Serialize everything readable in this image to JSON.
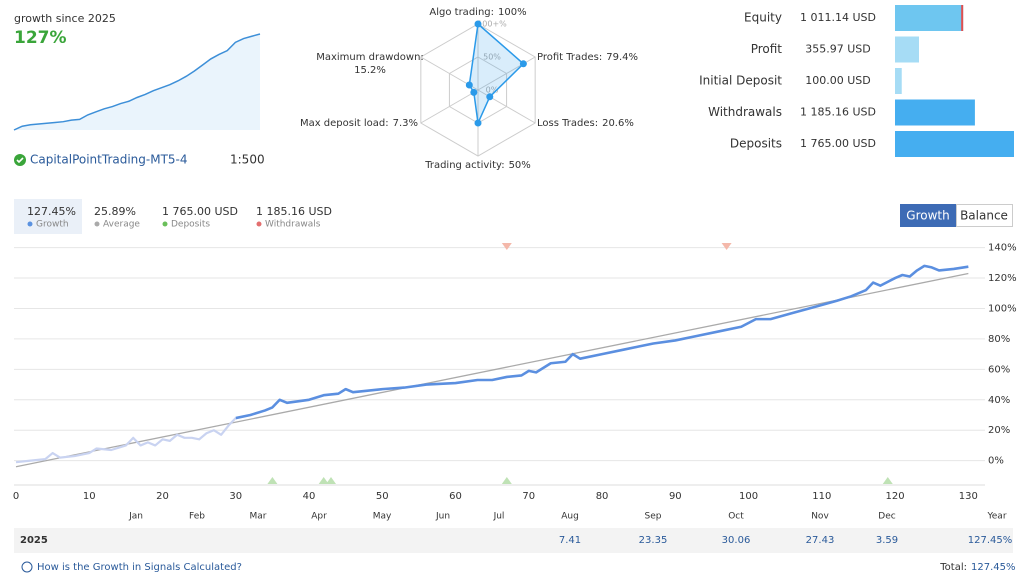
{
  "summary": {
    "label": "growth since 2025",
    "value": "127%",
    "sparkline": [
      0,
      5,
      7,
      8,
      9,
      10,
      11,
      13,
      14,
      20,
      24,
      28,
      31,
      35,
      38,
      43,
      47,
      52,
      56,
      60,
      65,
      71,
      78,
      86,
      94,
      100,
      105,
      116,
      121,
      124,
      127
    ],
    "color": "#3d8fd8",
    "account": "CapitalPointTrading-MT5-4",
    "leverage": "1:500"
  },
  "radar": {
    "color": "#2b9ae9",
    "axes": [
      {
        "name": "Algo trading:",
        "value": 100,
        "value_label": "100%"
      },
      {
        "name": "Profit Trades:",
        "value": 79.4,
        "value_label": "79.4%"
      },
      {
        "name": "Loss Trades:",
        "value": 20.6,
        "value_label": "20.6%"
      },
      {
        "name": "Trading activity:",
        "value": 50,
        "value_label": "50%"
      },
      {
        "name": "Max deposit load:",
        "value": 7.3,
        "value_label": "7.3%"
      },
      {
        "name": "Maximum drawdown:",
        "value": 15.2,
        "value_label": "15.2%"
      }
    ],
    "rticks": [
      {
        "value": 100,
        "label": "100+%"
      },
      {
        "value": 50,
        "label": "50%"
      },
      {
        "value": 0,
        "label": "0%"
      }
    ]
  },
  "stats": [
    {
      "label": "Equity",
      "value": 1011.14,
      "value_label": "1 011.14 USD",
      "color": "#6ec6f0"
    },
    {
      "label": "Profit",
      "value": 355.97,
      "value_label": "355.97 USD",
      "color": "#a6dcf5"
    },
    {
      "label": "Initial Deposit",
      "value": 100.0,
      "value_label": "100.00 USD",
      "color": "#a6dcf5"
    },
    {
      "label": "Withdrawals",
      "value": 1185.16,
      "value_label": "1 185.16 USD",
      "color": "#45aef0"
    },
    {
      "label": "Deposits",
      "value": 1765.0,
      "value_label": "1 765.00 USD",
      "color": "#45aef0"
    }
  ],
  "legend": [
    {
      "value": "127.45%",
      "name": "Growth",
      "color": "#5b92e0"
    },
    {
      "value": "25.89%",
      "name": "Average",
      "color": "#aaaaaa"
    },
    {
      "value": "1 765.00 USD",
      "name": "Deposits",
      "color": "#6abf5a"
    },
    {
      "value": "1 185.16 USD",
      "name": "Withdrawals",
      "color": "#e36f6f"
    }
  ],
  "buttons": [
    "Growth",
    "Balance"
  ],
  "chart": {
    "type": "line",
    "color": "#5b8fe0",
    "early_color": "#c9d3f1",
    "highlight_from": 30,
    "x": [
      0,
      2,
      4,
      5,
      6,
      8,
      10,
      11,
      13,
      15,
      16,
      17,
      18,
      19,
      20,
      21,
      22,
      23,
      24,
      25,
      26,
      27,
      28,
      29,
      30,
      32,
      34,
      35,
      36,
      37,
      40,
      42,
      44,
      45,
      46,
      48,
      50,
      53,
      56,
      60,
      63,
      65,
      67,
      69,
      70,
      71,
      73,
      75,
      76,
      77,
      80,
      83,
      85,
      87,
      90,
      93,
      96,
      99,
      101,
      103,
      106,
      109,
      112,
      114,
      116,
      117,
      118,
      120,
      121,
      122,
      123,
      124,
      125,
      126,
      128,
      130
    ],
    "values": [
      -1,
      0,
      1,
      5,
      2,
      3,
      5,
      8,
      7,
      10,
      15,
      10,
      12,
      10,
      14,
      13,
      17,
      15,
      15,
      14,
      18,
      20,
      17,
      23,
      28,
      30,
      33,
      35,
      40,
      38,
      40,
      43,
      44,
      47,
      45,
      46,
      47,
      48,
      50,
      51,
      53,
      53,
      55,
      56,
      59,
      58,
      64,
      65,
      70,
      67,
      70,
      73,
      75,
      77,
      79,
      82,
      85,
      88,
      93,
      93,
      97,
      101,
      105,
      108,
      112,
      117,
      115,
      120,
      122,
      121,
      125,
      128,
      127,
      125,
      126,
      127.45
    ],
    "trend": {
      "x": [
        0,
        130
      ],
      "values": [
        -4,
        123
      ],
      "color": "#aaaaaa"
    },
    "deposits_x": [
      35,
      42,
      43,
      67,
      119
    ],
    "deposit_color": "#bfe2b5",
    "withdrawals_x": [
      67,
      97
    ],
    "withdrawal_color": "#f4b8aa",
    "xlim": [
      0,
      132
    ],
    "ylim": [
      -16,
      145
    ],
    "xticks": [
      0,
      10,
      20,
      30,
      40,
      50,
      60,
      70,
      80,
      90,
      100,
      110,
      120,
      130
    ],
    "yticks": [
      {
        "value": 0,
        "label": "0%"
      },
      {
        "value": 20,
        "label": "20%"
      },
      {
        "value": 40,
        "label": "40%"
      },
      {
        "value": 60,
        "label": "60%"
      },
      {
        "value": 80,
        "label": "80%"
      },
      {
        "value": 100,
        "label": "100%"
      },
      {
        "value": 120,
        "label": "120%"
      },
      {
        "value": 140,
        "label": "140%"
      }
    ],
    "grid": true
  },
  "table": {
    "columns": [
      "Jan",
      "Feb",
      "Mar",
      "Apr",
      "May",
      "Jun",
      "Jul",
      "Aug",
      "Sep",
      "Oct",
      "Nov",
      "Dec",
      "Year"
    ],
    "rows": [
      {
        "year": "2025",
        "values": [
          null,
          null,
          null,
          null,
          null,
          null,
          null,
          "7.41",
          "23.35",
          "30.06",
          "27.43",
          "3.59"
        ],
        "total": "127.45%"
      }
    ]
  },
  "footer": {
    "link": "How is the Growth in Signals Calculated?",
    "total_label": "Total:",
    "total": "127.45%"
  }
}
